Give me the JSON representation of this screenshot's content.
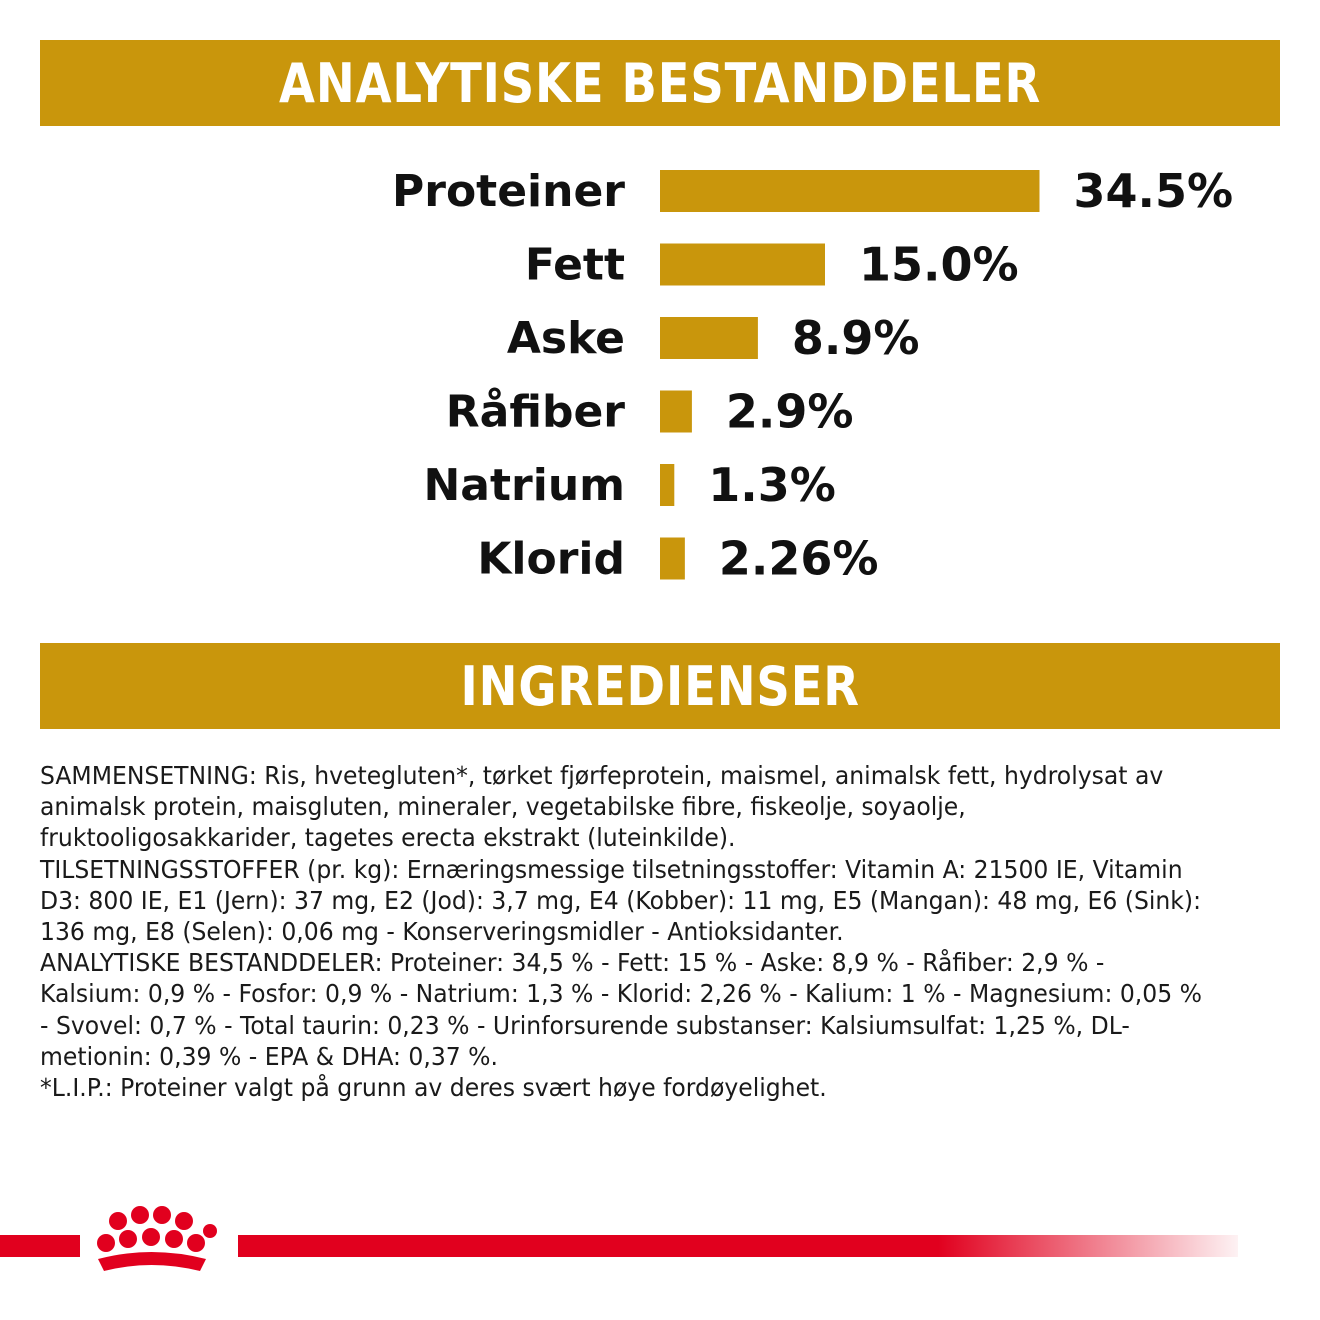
{
  "analytics": {
    "title": "ANALYTISKE BESTANDDELER"
  },
  "ingredients": {
    "title": "INGREDIENSER",
    "paragraphs": [
      "SAMMENSETNING: Ris, hvetegluten*, tørket fjørfeprotein, maismel, animalsk fett, hydrolysat av animalsk protein, maisgluten, mineraler, vegetabilske fibre, fiskeolje, soyaolje, fruktooligosakkarider, tagetes erecta ekstrakt (luteinkilde).",
      "TILSETNINGSSTOFFER (pr. kg): Ernæringsmessige tilsetningsstoffer: Vitamin A: 21500 IE, Vitamin D3: 800 IE, E1 (Jern): 37 mg, E2 (Jod): 3,7 mg, E4 (Kobber): 11 mg, E5 (Mangan): 48 mg, E6 (Sink): 136 mg, E8 (Selen): 0,06 mg - Konserveringsmidler - Antioksidanter.",
      "ANALYTISKE BESTANDDELER: Proteiner: 34,5 % - Fett: 15 % - Aske: 8,9 % - Råfiber: 2,9 % - Kalsium: 0,9 % - Fosfor: 0,9 % - Natrium: 1,3 % - Klorid: 2,26 % - Kalium: 1 % - Magnesium: 0,05 % - Svovel: 0,7 % - Total taurin: 0,23 % - Urinforsurende substanser: Kalsiumsulfat: 1,25 %, DL-metionin: 0,39 % - EPA & DHA: 0,37 %.",
      "*L.I.P.: Proteiner valgt på grunn av deres svært høye fordøyelighet."
    ]
  },
  "chart_data": {
    "type": "bar",
    "orientation": "horizontal",
    "categories": [
      "Proteiner",
      "Fett",
      "Aske",
      "Råfiber",
      "Natrium",
      "Klorid"
    ],
    "values": [
      34.5,
      15.0,
      8.9,
      2.9,
      1.3,
      2.26
    ],
    "value_labels": [
      "34.5%",
      "15.0%",
      "8.9%",
      "2.9%",
      "1.3%",
      "2.26%"
    ],
    "unit": "%",
    "bar_color": "#c9960c",
    "grid": false,
    "legend": "none"
  },
  "colors": {
    "accent": "#c9960c",
    "brand_red": "#e1001e"
  },
  "logo": {
    "icon": "royal-canin-crown-icon"
  }
}
